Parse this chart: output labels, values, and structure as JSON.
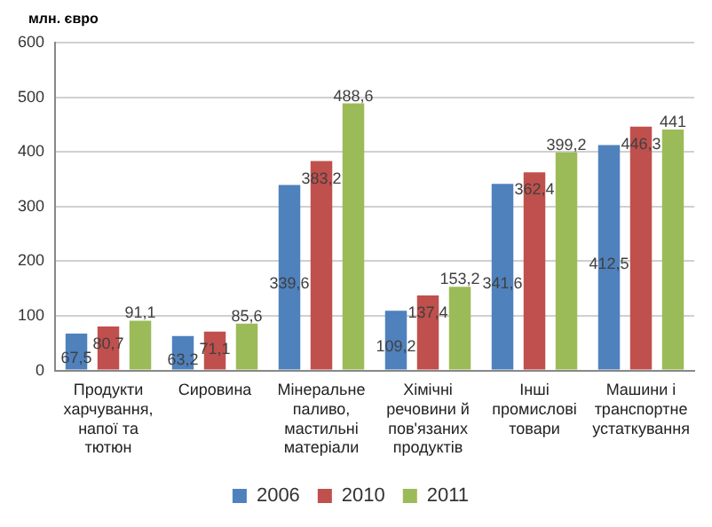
{
  "chart_data": {
    "type": "bar",
    "ylabel": "млн. євро",
    "categories": [
      "Продукти харчування, напої та тютюн",
      "Сировина",
      "Мінеральне паливо, мастильні матеріали",
      "Хімічні речовини й пов'язаних продуктів",
      "Інші промислові товари",
      "Машини і транспортне устаткування"
    ],
    "series": [
      {
        "name": "2006",
        "color": "#4f81bd",
        "values": [
          67.5,
          63.2,
          339.6,
          109.2,
          341.6,
          412.5
        ],
        "value_labels": [
          "67,5",
          "63,2",
          "339,6",
          "109,2",
          "341,6",
          "412,5"
        ]
      },
      {
        "name": "2010",
        "color": "#c0504d",
        "values": [
          80.7,
          71.1,
          383.2,
          137.4,
          362.4,
          446.3
        ],
        "value_labels": [
          "80,7",
          "71,1",
          "383,2",
          "137,4",
          "362,4",
          "446,3"
        ]
      },
      {
        "name": "2011",
        "color": "#9bbb59",
        "values": [
          91.1,
          85.6,
          488.6,
          153.2,
          399.2,
          441
        ],
        "value_labels": [
          "91,1",
          "85,6",
          "488,6",
          "153,2",
          "399,2",
          "441"
        ]
      }
    ],
    "ylim": [
      0,
      600
    ],
    "yticks": [
      0,
      100,
      200,
      300,
      400,
      500,
      600
    ],
    "grid": "y",
    "legend": "bottom"
  }
}
